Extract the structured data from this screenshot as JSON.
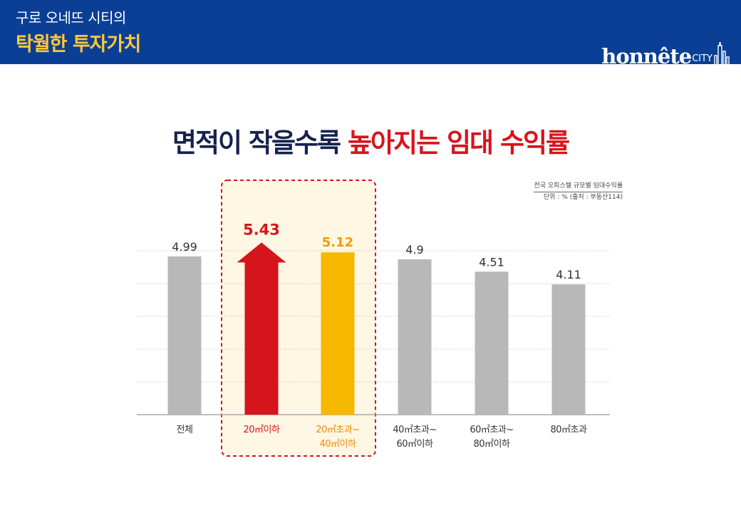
{
  "header": {
    "subtitle": "구로 오네뜨 시티의",
    "title": "탁월한 투자가치",
    "brand": "honnête",
    "brand_suffix": "CITY"
  },
  "headline": {
    "part1": "면적이 작을수록",
    "part2": "높아지는 임대 수익률"
  },
  "source": {
    "line1": "전국 오피스텔 규모별 임대수익률",
    "line2": "단위 : % (출처 : 부동산114)"
  },
  "colors": {
    "header_bg": "#0b3f95",
    "header_accent": "#ffc83a",
    "headline_dark": "#15224e",
    "headline_red": "#d6141c",
    "bar_gray": "#b8b8b8",
    "bar_red": "#d6141c",
    "bar_yellow": "#f7b800",
    "highlight_border": "#d6141c",
    "highlight_fill": "#fdf7e4"
  },
  "chart_data": {
    "type": "bar",
    "categories": [
      "전체",
      "20㎡이하",
      "20㎡초과~\n40㎡이하",
      "40㎡초과~\n60㎡이하",
      "60㎡초과~\n80㎡이하",
      "80㎡초과"
    ],
    "values": [
      4.99,
      5.43,
      5.12,
      4.9,
      4.51,
      4.11
    ],
    "value_labels": [
      "4.99",
      "5.43",
      "5.12",
      "4.9",
      "4.51",
      "4.11"
    ],
    "ylabel": "",
    "xlabel": "",
    "unit": "%",
    "grid": true,
    "highlighted_categories": [
      1,
      2
    ]
  }
}
